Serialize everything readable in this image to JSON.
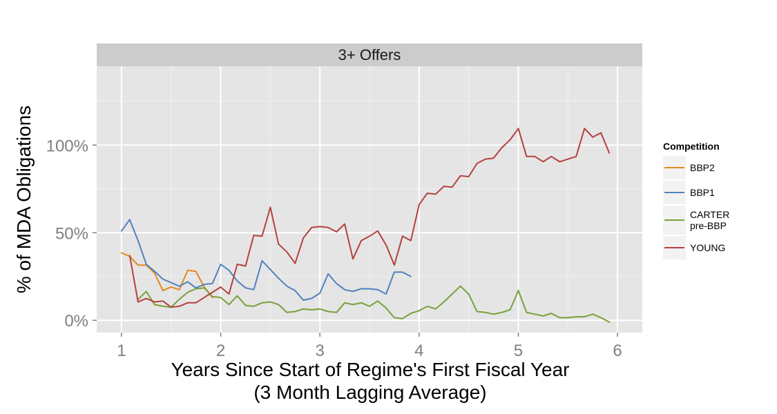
{
  "chart_data": {
    "type": "line",
    "facet_label": "3+ Offers",
    "xlabel_line1": "Years Since Start of Regime's First Fiscal Year",
    "xlabel_line2": "(3 Month Lagging Average)",
    "ylabel": "% of MDA Obligations",
    "xlim": [
      0.75,
      6.25
    ],
    "ylim": [
      -7,
      145
    ],
    "x_ticks": [
      1,
      2,
      3,
      4,
      5,
      6
    ],
    "x_tick_labels": [
      "1",
      "2",
      "3",
      "4",
      "5",
      "6"
    ],
    "y_ticks": [
      0,
      50,
      100
    ],
    "y_tick_labels": [
      "0%",
      "50%",
      "100%"
    ],
    "grid": true,
    "legend_position": "right",
    "legend_title": "Competition",
    "series": [
      {
        "name": "BBP2",
        "label_lines": [
          "BBP2"
        ],
        "color": "#E08A1C",
        "x": [
          1.0,
          1.083,
          1.167,
          1.25,
          1.333,
          1.417,
          1.5,
          1.583,
          1.667,
          1.75,
          1.833,
          1.917
        ],
        "y": [
          38.5,
          36.5,
          31.5,
          31.5,
          27,
          17,
          19,
          17.5,
          28.5,
          28,
          19,
          13
        ]
      },
      {
        "name": "BBP1",
        "label_lines": [
          "BBP1"
        ],
        "color": "#4F81BD",
        "x": [
          1.0,
          1.083,
          1.167,
          1.25,
          1.333,
          1.417,
          1.5,
          1.583,
          1.667,
          1.75,
          1.833,
          1.917,
          2.0,
          2.083,
          2.167,
          2.25,
          2.333,
          2.417,
          2.5,
          2.583,
          2.667,
          2.75,
          2.833,
          2.917,
          3.0,
          3.083,
          3.167,
          3.25,
          3.333,
          3.417,
          3.5,
          3.583,
          3.667,
          3.75,
          3.833,
          3.917
        ],
        "y": [
          51,
          57.5,
          45.5,
          32,
          28,
          23.5,
          21.5,
          19.5,
          22,
          18.5,
          20.5,
          21,
          32,
          28.5,
          22.5,
          18.5,
          17.5,
          34,
          29,
          24,
          19.5,
          17,
          11.5,
          12.5,
          15.5,
          26.5,
          21,
          17.5,
          16.5,
          18,
          18,
          17.5,
          15,
          27.5,
          27.5,
          25
        ]
      },
      {
        "name": "CARTER pre-BBP",
        "label_lines": [
          "CARTER",
          "pre-BBP"
        ],
        "color": "#77A03A",
        "x": [
          1.167,
          1.25,
          1.333,
          1.417,
          1.5,
          1.583,
          1.667,
          1.75,
          1.833,
          1.917,
          2.0,
          2.083,
          2.167,
          2.25,
          2.333,
          2.417,
          2.5,
          2.583,
          2.667,
          2.75,
          2.833,
          2.917,
          3.0,
          3.083,
          3.167,
          3.25,
          3.333,
          3.417,
          3.5,
          3.583,
          3.667,
          3.75,
          3.833,
          3.917,
          4.0,
          4.083,
          4.167,
          4.25,
          4.333,
          4.417,
          4.5,
          4.583,
          4.667,
          4.75,
          4.833,
          4.917,
          5.0,
          5.083,
          5.167,
          5.25,
          5.333,
          5.417,
          5.5,
          5.583,
          5.667,
          5.75,
          5.833,
          5.917
        ],
        "y": [
          12,
          16.5,
          9,
          8,
          7.5,
          12,
          16,
          18,
          18.5,
          13.5,
          13,
          9,
          14,
          8.5,
          8,
          10,
          10.5,
          9,
          4.5,
          5,
          6.5,
          6,
          6.5,
          5,
          4.5,
          10,
          9,
          10,
          8,
          11,
          7,
          1.5,
          1,
          4,
          5.5,
          8,
          6.5,
          10.5,
          15,
          19.5,
          15,
          5,
          4.5,
          3.5,
          4.5,
          6,
          17,
          4.5,
          3.5,
          2.5,
          4,
          1.5,
          1.5,
          2,
          2,
          3.5,
          1.5,
          -1
        ]
      },
      {
        "name": "YOUNG",
        "label_lines": [
          "YOUNG"
        ],
        "color": "#B5403E",
        "x": [
          1.083,
          1.167,
          1.25,
          1.333,
          1.417,
          1.5,
          1.583,
          1.667,
          1.75,
          1.833,
          1.917,
          2.0,
          2.083,
          2.167,
          2.25,
          2.333,
          2.417,
          2.5,
          2.583,
          2.667,
          2.75,
          2.833,
          2.917,
          3.0,
          3.083,
          3.167,
          3.25,
          3.333,
          3.417,
          3.5,
          3.583,
          3.667,
          3.75,
          3.833,
          3.917,
          4.0,
          4.083,
          4.167,
          4.25,
          4.333,
          4.417,
          4.5,
          4.583,
          4.667,
          4.75,
          4.833,
          4.917,
          5.0,
          5.083,
          5.167,
          5.25,
          5.333,
          5.417,
          5.5,
          5.583,
          5.667,
          5.75,
          5.833,
          5.917
        ],
        "y": [
          37,
          10.5,
          12.5,
          10.5,
          11,
          7.5,
          8,
          10,
          10,
          13,
          16,
          19,
          15,
          32,
          31,
          48.5,
          48,
          64.5,
          43.5,
          39,
          32.5,
          47,
          53,
          53.5,
          53,
          50.5,
          55,
          35,
          45.5,
          48,
          51,
          43,
          31.5,
          48,
          45.5,
          66,
          72.5,
          72,
          76.5,
          76,
          82.5,
          82,
          89.5,
          92,
          92.5,
          98.5,
          103,
          109.5,
          93.5,
          93.5,
          90.5,
          93.5,
          90.5,
          92,
          93.5,
          109.5,
          104.5,
          107,
          95.5
        ]
      }
    ]
  }
}
